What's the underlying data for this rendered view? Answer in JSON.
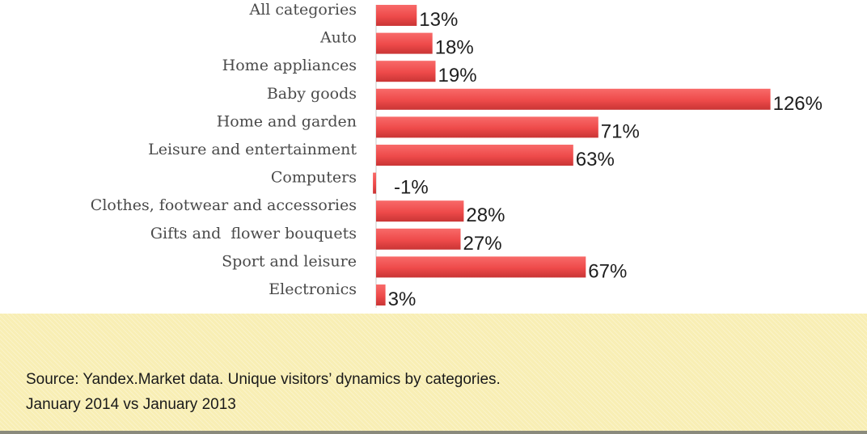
{
  "chart_data": {
    "type": "bar",
    "orientation": "horizontal",
    "categories": [
      "All categories",
      "Auto",
      "Home appliances",
      "Baby goods",
      "Home and garden",
      "Leisure and entertainment",
      "Computers",
      "Clothes, footwear and accessories",
      "Gifts and  flower bouquets",
      "Sport and leisure",
      "Electronics"
    ],
    "values": [
      13,
      18,
      19,
      126,
      71,
      63,
      -1,
      28,
      27,
      67,
      3
    ],
    "value_labels": [
      "13%",
      "18%",
      "19%",
      "126%",
      "71%",
      "63%",
      "-1%",
      "28%",
      "27%",
      "67%",
      "3%"
    ],
    "bar_color": "#f0504f",
    "grid": false,
    "legend": "none"
  },
  "source": {
    "line1": "Source: Yandex.Market data. Unique visitors’ dynamics by categories.",
    "line2": "January 2014 vs January 2013"
  },
  "colors": {
    "panel_background": "#f8eeb4"
  }
}
